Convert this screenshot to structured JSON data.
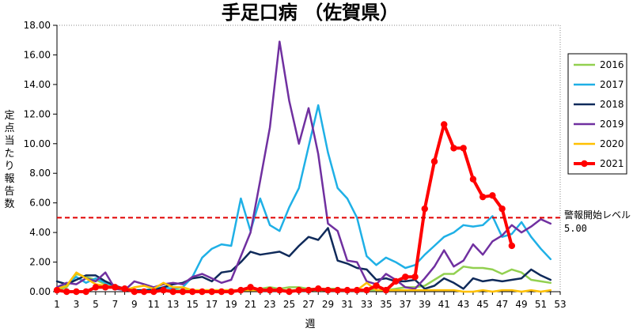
{
  "chart_data": {
    "type": "line",
    "title": "手足口病 （佐賀県）",
    "xlabel": "週",
    "ylabel": "定点当たり報告数",
    "ylim": [
      0,
      18
    ],
    "yticks": [
      "0.00",
      "2.00",
      "4.00",
      "6.00",
      "8.00",
      "10.00",
      "12.00",
      "14.00",
      "16.00",
      "18.00"
    ],
    "xlim": [
      1,
      53
    ],
    "xticks": [
      "1",
      "3",
      "5",
      "7",
      "9",
      "11",
      "13",
      "15",
      "17",
      "19",
      "21",
      "23",
      "25",
      "27",
      "29",
      "31",
      "33",
      "35",
      "37",
      "39",
      "41",
      "43",
      "45",
      "47",
      "49",
      "51",
      "53"
    ],
    "grid": false,
    "legend_position": "right",
    "threshold": {
      "value": 5.0,
      "label": "警報開始レベル",
      "value_label": "5.00",
      "color": "#e00000"
    },
    "series": [
      {
        "name": "2016",
        "color": "#92d050",
        "width": 2.5,
        "markers": false,
        "x": [
          1,
          2,
          3,
          4,
          5,
          6,
          7,
          8,
          9,
          10,
          11,
          12,
          13,
          14,
          15,
          16,
          17,
          18,
          19,
          20,
          21,
          22,
          23,
          24,
          25,
          26,
          27,
          28,
          29,
          30,
          31,
          32,
          33,
          34,
          35,
          36,
          37,
          38,
          39,
          40,
          41,
          42,
          43,
          44,
          45,
          46,
          47,
          48,
          49,
          50,
          51,
          52
        ],
        "values": [
          0.1,
          0.3,
          1.2,
          1.0,
          0.8,
          0.5,
          0.4,
          0.2,
          0.1,
          0.1,
          0.1,
          0.1,
          0.1,
          0.1,
          0.1,
          0.1,
          0.1,
          0.1,
          0.1,
          0.1,
          0.1,
          0.2,
          0.3,
          0.2,
          0.3,
          0.3,
          0.2,
          0.2,
          0.2,
          0.2,
          0.1,
          0.1,
          0.1,
          0.1,
          0.1,
          0.2,
          0.3,
          0.3,
          0.4,
          0.8,
          1.2,
          1.2,
          1.7,
          1.6,
          1.6,
          1.5,
          1.2,
          1.5,
          1.3,
          0.8,
          0.7,
          0.6
        ]
      },
      {
        "name": "2017",
        "color": "#1fb0e6",
        "width": 2.5,
        "markers": false,
        "x": [
          1,
          2,
          3,
          4,
          5,
          6,
          7,
          8,
          9,
          10,
          11,
          12,
          13,
          14,
          15,
          16,
          17,
          18,
          19,
          20,
          21,
          22,
          23,
          24,
          25,
          26,
          27,
          28,
          29,
          30,
          31,
          32,
          33,
          34,
          35,
          36,
          37,
          38,
          39,
          40,
          41,
          42,
          43,
          44,
          45,
          46,
          47,
          48,
          49,
          50,
          51,
          52
        ],
        "values": [
          0.2,
          0.5,
          1.0,
          0.6,
          0.9,
          0.6,
          0.4,
          0.2,
          0.1,
          0.1,
          0.2,
          0.3,
          0.2,
          0.3,
          1.0,
          2.3,
          2.9,
          3.2,
          3.1,
          6.3,
          4.1,
          6.3,
          4.5,
          4.1,
          5.7,
          7.0,
          9.8,
          12.6,
          9.4,
          7.0,
          6.3,
          5.0,
          2.4,
          1.8,
          2.3,
          2.0,
          1.6,
          1.8,
          2.5,
          3.1,
          3.7,
          4.0,
          4.5,
          4.4,
          4.5,
          5.1,
          3.7,
          3.9,
          4.7,
          3.7,
          2.9,
          2.2
        ]
      },
      {
        "name": "2018",
        "color": "#0f2a5a",
        "width": 2.5,
        "markers": false,
        "x": [
          1,
          2,
          3,
          4,
          5,
          6,
          7,
          8,
          9,
          10,
          11,
          12,
          13,
          14,
          15,
          16,
          17,
          18,
          19,
          20,
          21,
          22,
          23,
          24,
          25,
          26,
          27,
          28,
          29,
          30,
          31,
          32,
          33,
          34,
          35,
          36,
          37,
          38,
          39,
          40,
          41,
          42,
          43,
          44,
          45,
          46,
          47,
          48,
          49,
          50,
          51,
          52
        ],
        "values": [
          0.7,
          0.5,
          0.8,
          1.1,
          1.1,
          0.7,
          0.4,
          0.2,
          0.1,
          0.1,
          0.1,
          0.3,
          0.5,
          0.6,
          0.9,
          1.0,
          0.7,
          1.3,
          1.4,
          2.0,
          2.7,
          2.5,
          2.6,
          2.7,
          2.4,
          3.1,
          3.7,
          3.5,
          4.3,
          2.1,
          1.9,
          1.6,
          1.5,
          0.8,
          0.9,
          0.7,
          0.7,
          0.8,
          0.2,
          0.4,
          0.9,
          0.6,
          0.2,
          0.9,
          0.7,
          0.8,
          0.7,
          0.8,
          0.9,
          1.5,
          1.1,
          0.8
        ]
      },
      {
        "name": "2019",
        "color": "#7030a0",
        "width": 2.5,
        "markers": false,
        "x": [
          1,
          2,
          3,
          4,
          5,
          6,
          7,
          8,
          9,
          10,
          11,
          12,
          13,
          14,
          15,
          16,
          17,
          18,
          19,
          20,
          21,
          22,
          23,
          24,
          25,
          26,
          27,
          28,
          29,
          30,
          31,
          32,
          33,
          34,
          35,
          36,
          37,
          38,
          39,
          40,
          41,
          42,
          43,
          44,
          45,
          46,
          47,
          48,
          49,
          50,
          51,
          52
        ],
        "values": [
          0.3,
          0.6,
          0.5,
          0.9,
          0.7,
          1.3,
          0.2,
          0.1,
          0.7,
          0.5,
          0.3,
          0.5,
          0.6,
          0.5,
          1.0,
          1.2,
          0.9,
          0.6,
          0.8,
          2.4,
          4.0,
          7.5,
          11.1,
          16.9,
          12.9,
          10.0,
          12.4,
          9.3,
          4.6,
          4.1,
          2.1,
          2.0,
          0.7,
          0.5,
          1.2,
          0.8,
          0.3,
          0.2,
          0.9,
          1.7,
          2.8,
          1.7,
          2.1,
          3.2,
          2.5,
          3.4,
          3.8,
          4.5,
          4.0,
          4.4,
          4.9,
          4.6
        ]
      },
      {
        "name": "2020",
        "color": "#ffc000",
        "width": 2.5,
        "markers": false,
        "x": [
          1,
          2,
          3,
          4,
          5,
          6,
          7,
          8,
          9,
          10,
          11,
          12,
          13,
          14,
          15,
          16,
          17,
          18,
          19,
          20,
          21,
          22,
          23,
          24,
          25,
          26,
          27,
          28,
          29,
          30,
          31,
          32,
          33,
          34,
          35,
          36,
          37,
          38,
          39,
          40,
          41,
          42,
          43,
          44,
          45,
          46,
          47,
          48,
          49,
          50,
          51,
          52
        ],
        "values": [
          0.2,
          0.4,
          1.3,
          0.9,
          0.5,
          0.4,
          0.3,
          0.1,
          0.3,
          0.4,
          0.2,
          0.6,
          0.3,
          0.3,
          0.1,
          0.1,
          0.1,
          0.1,
          0.1,
          0.1,
          0.1,
          0.1,
          0.1,
          0.1,
          0.1,
          0.1,
          0.1,
          0.1,
          0.1,
          0.1,
          0.1,
          0.1,
          0.6,
          0.1,
          0.1,
          0.1,
          0.1,
          0.1,
          0.1,
          0.1,
          0.1,
          0.1,
          0.0,
          0.0,
          0.1,
          0.0,
          0.1,
          0.1,
          0.0,
          0.1,
          0.0,
          0.1
        ]
      },
      {
        "name": "2021",
        "color": "#ff0000",
        "width": 4,
        "markers": true,
        "x": [
          1,
          2,
          3,
          4,
          5,
          6,
          7,
          8,
          9,
          10,
          11,
          12,
          13,
          14,
          15,
          16,
          17,
          18,
          19,
          20,
          21,
          22,
          23,
          24,
          25,
          26,
          27,
          28,
          29,
          30,
          31,
          32,
          33,
          34,
          35,
          36,
          37,
          38,
          39,
          40,
          41,
          42,
          43,
          44,
          45,
          46,
          47,
          48
        ],
        "values": [
          0.1,
          0.0,
          0.0,
          0.0,
          0.3,
          0.3,
          0.3,
          0.2,
          0.0,
          0.0,
          0.0,
          0.1,
          0.0,
          0.0,
          0.0,
          0.0,
          0.0,
          0.0,
          0.0,
          0.1,
          0.3,
          0.1,
          0.1,
          0.1,
          0.0,
          0.1,
          0.1,
          0.2,
          0.1,
          0.1,
          0.1,
          0.1,
          0.1,
          0.4,
          0.1,
          0.7,
          1.0,
          1.0,
          5.6,
          8.8,
          11.3,
          9.7,
          9.7,
          7.6,
          6.4,
          6.5,
          5.6,
          3.1
        ]
      }
    ]
  }
}
